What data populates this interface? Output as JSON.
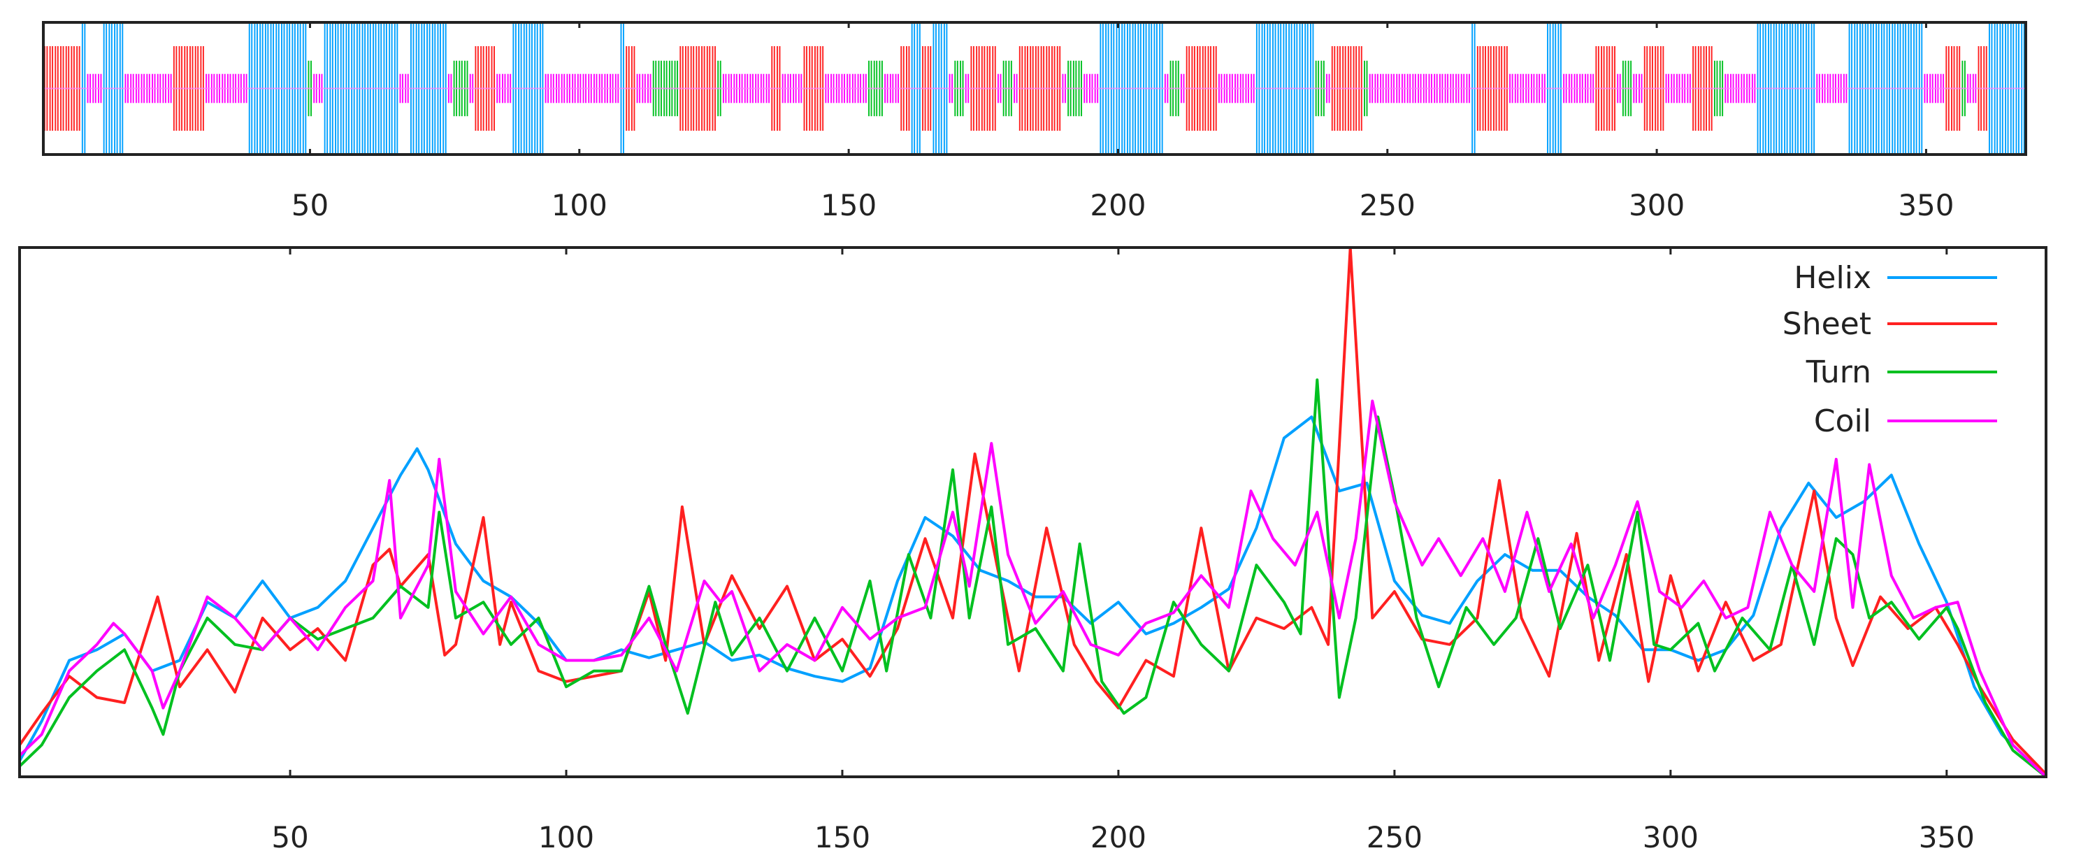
{
  "chart_data": [
    {
      "type": "bar",
      "kind": "secondary-structure-track",
      "length": 368,
      "xlim": [
        0.5,
        368.5
      ],
      "xticks": [
        50,
        100,
        150,
        200,
        250,
        300,
        350
      ],
      "xtick_labels": [
        "50",
        "100",
        "150",
        "200",
        "250",
        "300",
        "350"
      ],
      "default_class": "Coil",
      "classes": {
        "Helix": {
          "color": "#00a0ff",
          "level": 1.0
        },
        "Sheet": {
          "color": "#ff2020",
          "level": 0.64
        },
        "Turn": {
          "color": "#00c020",
          "level": 0.42
        },
        "Coil": {
          "color": "#ff00ff",
          "level": 0.22
        }
      },
      "segments": {
        "Helix": [
          [
            8,
            8
          ],
          [
            12,
            15
          ],
          [
            39,
            49
          ],
          [
            53,
            66
          ],
          [
            69,
            75
          ],
          [
            88,
            93
          ],
          [
            108,
            108
          ],
          [
            162,
            163
          ],
          [
            166,
            168
          ],
          [
            197,
            208
          ],
          [
            226,
            236
          ],
          [
            266,
            266
          ],
          [
            280,
            282
          ],
          [
            319,
            329
          ],
          [
            336,
            349
          ],
          [
            362,
            368
          ]
        ],
        "Sheet": [
          [
            1,
            7
          ],
          [
            25,
            30
          ],
          [
            81,
            84
          ],
          [
            109,
            110
          ],
          [
            119,
            125
          ],
          [
            136,
            137
          ],
          [
            142,
            145
          ],
          [
            160,
            161
          ],
          [
            164,
            165
          ],
          [
            173,
            177
          ],
          [
            182,
            189
          ],
          [
            213,
            218
          ],
          [
            240,
            245
          ],
          [
            267,
            272
          ],
          [
            289,
            292
          ],
          [
            298,
            301
          ],
          [
            307,
            310
          ],
          [
            354,
            356
          ],
          [
            360,
            361
          ]
        ],
        "Turn": [
          [
            50,
            50
          ],
          [
            77,
            79
          ],
          [
            114,
            118
          ],
          [
            126,
            126
          ],
          [
            154,
            156
          ],
          [
            170,
            171
          ],
          [
            179,
            180
          ],
          [
            191,
            193
          ],
          [
            210,
            211
          ],
          [
            237,
            238
          ],
          [
            246,
            246
          ],
          [
            294,
            295
          ],
          [
            311,
            312
          ],
          [
            357,
            357
          ]
        ]
      }
    },
    {
      "type": "line",
      "xlim": [
        1,
        368
      ],
      "ylim": [
        0,
        1
      ],
      "grid": false,
      "legend_position": "top-right",
      "xticks": [
        50,
        100,
        150,
        200,
        250,
        300,
        350
      ],
      "xtick_labels": [
        "50",
        "100",
        "150",
        "200",
        "250",
        "300",
        "350"
      ],
      "series": [
        {
          "name": "Helix",
          "color": "#00a0ff",
          "x": [
            1,
            5,
            10,
            15,
            20,
            25,
            30,
            35,
            40,
            45,
            50,
            55,
            60,
            65,
            70,
            73,
            75,
            80,
            85,
            90,
            95,
            100,
            105,
            110,
            115,
            120,
            125,
            130,
            135,
            140,
            145,
            150,
            155,
            160,
            165,
            170,
            175,
            180,
            185,
            190,
            195,
            200,
            205,
            210,
            215,
            220,
            225,
            230,
            235,
            240,
            245,
            250,
            255,
            260,
            265,
            270,
            275,
            280,
            285,
            290,
            295,
            300,
            305,
            310,
            315,
            320,
            325,
            330,
            335,
            340,
            345,
            350,
            355,
            360,
            365,
            368
          ],
          "y": [
            0.03,
            0.105,
            0.22,
            0.24,
            0.27,
            0.2,
            0.22,
            0.33,
            0.3,
            0.37,
            0.3,
            0.32,
            0.37,
            0.47,
            0.57,
            0.62,
            0.58,
            0.44,
            0.37,
            0.34,
            0.29,
            0.22,
            0.22,
            0.24,
            0.225,
            0.24,
            0.255,
            0.22,
            0.23,
            0.205,
            0.19,
            0.18,
            0.205,
            0.37,
            0.49,
            0.455,
            0.39,
            0.37,
            0.34,
            0.34,
            0.29,
            0.33,
            0.27,
            0.29,
            0.32,
            0.355,
            0.47,
            0.64,
            0.68,
            0.54,
            0.555,
            0.37,
            0.305,
            0.29,
            0.37,
            0.42,
            0.39,
            0.39,
            0.34,
            0.305,
            0.24,
            0.24,
            0.22,
            0.24,
            0.305,
            0.47,
            0.555,
            0.49,
            0.52,
            0.57,
            0.44,
            0.33,
            0.17,
            0.08,
            0.03,
            0.005
          ]
        },
        {
          "name": "Sheet",
          "color": "#ff2020",
          "x": [
            1,
            5,
            10,
            15,
            20,
            26,
            30,
            35,
            40,
            45,
            50,
            55,
            60,
            65,
            68,
            70,
            75,
            78,
            80,
            85,
            88,
            90,
            95,
            100,
            105,
            110,
            115,
            118,
            121,
            125,
            130,
            135,
            140,
            145,
            150,
            155,
            160,
            165,
            170,
            174,
            178,
            182,
            187,
            192,
            196,
            200,
            205,
            210,
            215,
            220,
            225,
            230,
            235,
            238,
            242,
            246,
            250,
            255,
            260,
            265,
            269,
            273,
            278,
            283,
            287,
            292,
            296,
            300,
            305,
            310,
            315,
            320,
            326,
            330,
            333,
            338,
            343,
            348,
            352,
            356,
            362,
            368
          ],
          "y": [
            0.06,
            0.12,
            0.19,
            0.15,
            0.14,
            0.34,
            0.17,
            0.24,
            0.16,
            0.3,
            0.24,
            0.28,
            0.22,
            0.4,
            0.43,
            0.36,
            0.42,
            0.23,
            0.25,
            0.49,
            0.25,
            0.33,
            0.2,
            0.18,
            0.19,
            0.2,
            0.35,
            0.22,
            0.51,
            0.25,
            0.38,
            0.28,
            0.36,
            0.22,
            0.26,
            0.19,
            0.28,
            0.45,
            0.3,
            0.61,
            0.4,
            0.2,
            0.47,
            0.25,
            0.18,
            0.13,
            0.22,
            0.19,
            0.47,
            0.2,
            0.3,
            0.28,
            0.32,
            0.25,
            1.0,
            0.3,
            0.35,
            0.26,
            0.25,
            0.3,
            0.56,
            0.3,
            0.19,
            0.46,
            0.22,
            0.42,
            0.18,
            0.38,
            0.2,
            0.33,
            0.22,
            0.25,
            0.54,
            0.3,
            0.21,
            0.34,
            0.28,
            0.32,
            0.25,
            0.17,
            0.07,
            0.005
          ]
        },
        {
          "name": "Turn",
          "color": "#00c020",
          "x": [
            1,
            5,
            10,
            15,
            20,
            25,
            27,
            30,
            35,
            40,
            45,
            50,
            55,
            60,
            65,
            70,
            75,
            77,
            80,
            85,
            90,
            95,
            100,
            105,
            110,
            115,
            118,
            122,
            127,
            130,
            135,
            140,
            145,
            150,
            155,
            158,
            162,
            166,
            170,
            173,
            177,
            180,
            185,
            190,
            193,
            197,
            201,
            205,
            210,
            215,
            220,
            225,
            230,
            233,
            236,
            240,
            243,
            247,
            250,
            254,
            258,
            263,
            268,
            272,
            276,
            280,
            285,
            289,
            294,
            297,
            300,
            305,
            308,
            313,
            318,
            322,
            326,
            330,
            333,
            336,
            340,
            345,
            350,
            352,
            357,
            362,
            368
          ],
          "y": [
            0.02,
            0.06,
            0.15,
            0.2,
            0.24,
            0.13,
            0.08,
            0.2,
            0.3,
            0.25,
            0.24,
            0.3,
            0.26,
            0.28,
            0.3,
            0.36,
            0.32,
            0.5,
            0.3,
            0.33,
            0.25,
            0.3,
            0.17,
            0.2,
            0.2,
            0.36,
            0.25,
            0.12,
            0.33,
            0.23,
            0.3,
            0.2,
            0.3,
            0.2,
            0.37,
            0.2,
            0.42,
            0.3,
            0.58,
            0.3,
            0.51,
            0.25,
            0.28,
            0.2,
            0.44,
            0.18,
            0.12,
            0.15,
            0.33,
            0.25,
            0.2,
            0.4,
            0.33,
            0.27,
            0.75,
            0.15,
            0.3,
            0.68,
            0.53,
            0.3,
            0.17,
            0.32,
            0.25,
            0.3,
            0.45,
            0.28,
            0.4,
            0.22,
            0.5,
            0.25,
            0.24,
            0.29,
            0.2,
            0.3,
            0.24,
            0.4,
            0.25,
            0.45,
            0.42,
            0.3,
            0.33,
            0.26,
            0.32,
            0.28,
            0.14,
            0.05,
            0.0
          ]
        },
        {
          "name": "Coil",
          "color": "#ff00ff",
          "x": [
            1,
            5,
            10,
            15,
            18,
            20,
            25,
            27,
            30,
            35,
            40,
            45,
            50,
            55,
            60,
            65,
            68,
            70,
            75,
            77,
            80,
            85,
            90,
            95,
            100,
            105,
            110,
            115,
            120,
            125,
            128,
            130,
            135,
            140,
            145,
            150,
            155,
            160,
            165,
            170,
            173,
            177,
            180,
            185,
            190,
            195,
            200,
            205,
            210,
            215,
            220,
            224,
            228,
            232,
            236,
            240,
            243,
            246,
            250,
            255,
            258,
            262,
            266,
            270,
            274,
            278,
            282,
            286,
            290,
            294,
            298,
            302,
            306,
            310,
            314,
            318,
            322,
            326,
            330,
            333,
            336,
            340,
            344,
            348,
            352,
            356,
            362,
            368
          ],
          "y": [
            0.04,
            0.08,
            0.2,
            0.25,
            0.29,
            0.27,
            0.2,
            0.13,
            0.2,
            0.34,
            0.3,
            0.24,
            0.3,
            0.24,
            0.32,
            0.37,
            0.56,
            0.3,
            0.4,
            0.6,
            0.35,
            0.27,
            0.34,
            0.25,
            0.22,
            0.22,
            0.23,
            0.3,
            0.2,
            0.37,
            0.33,
            0.35,
            0.2,
            0.25,
            0.22,
            0.32,
            0.26,
            0.3,
            0.32,
            0.5,
            0.36,
            0.63,
            0.42,
            0.29,
            0.35,
            0.25,
            0.23,
            0.29,
            0.31,
            0.38,
            0.32,
            0.54,
            0.45,
            0.4,
            0.5,
            0.3,
            0.45,
            0.71,
            0.52,
            0.4,
            0.45,
            0.38,
            0.45,
            0.35,
            0.5,
            0.35,
            0.44,
            0.3,
            0.4,
            0.52,
            0.35,
            0.32,
            0.37,
            0.3,
            0.32,
            0.5,
            0.4,
            0.35,
            0.6,
            0.32,
            0.59,
            0.38,
            0.3,
            0.32,
            0.33,
            0.2,
            0.06,
            0.0
          ]
        }
      ]
    }
  ]
}
